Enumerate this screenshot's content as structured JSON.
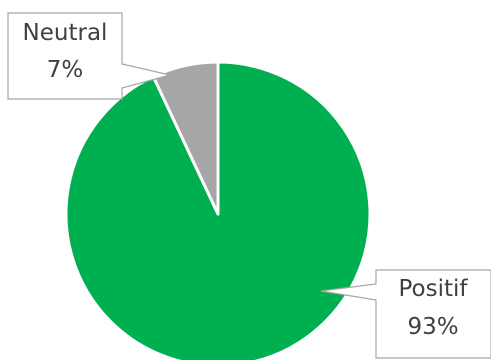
{
  "chart_data": {
    "type": "pie",
    "title": "",
    "slices": [
      {
        "name": "Positif",
        "value": 93,
        "value_label": "93%",
        "color": "#00b050"
      },
      {
        "name": "Neutral",
        "value": 7,
        "value_label": "7%",
        "color": "#a6a6a6"
      }
    ],
    "start_angle": "12 o'clock",
    "direction": "clockwise",
    "slice_border_color": "#ffffff",
    "label_style": "callout",
    "legend": "none"
  }
}
